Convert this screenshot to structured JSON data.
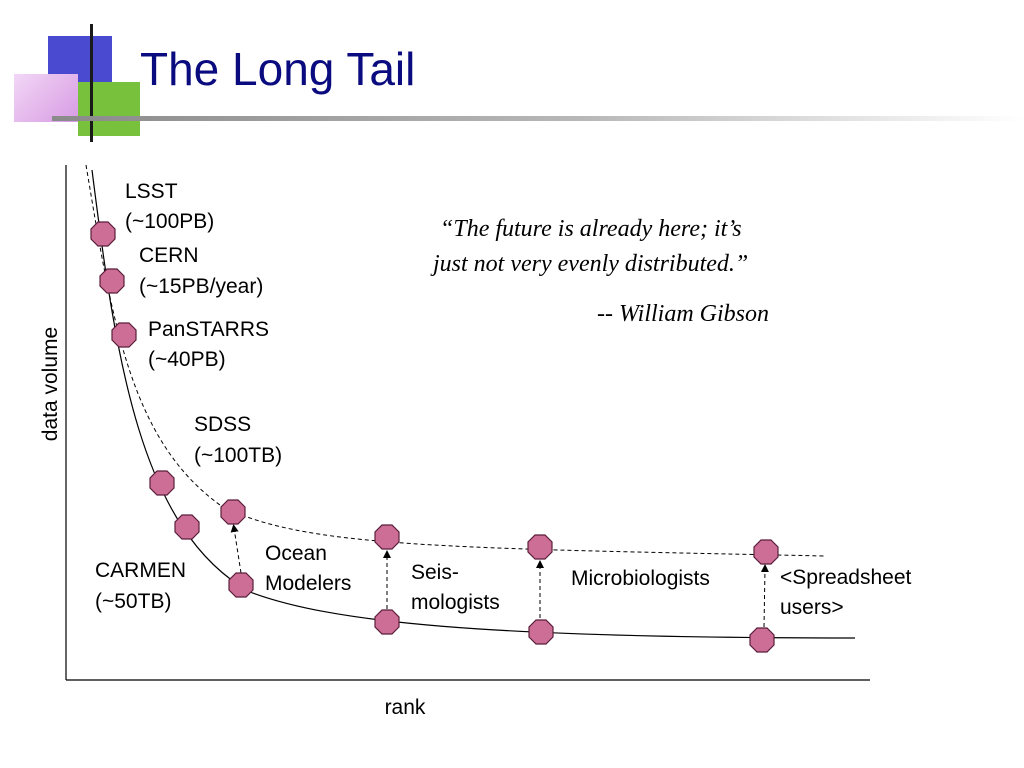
{
  "slide": {
    "title": "The Long Tail"
  },
  "quote": {
    "line1": "“The future is already here; it’s",
    "line2": "just not very evenly distributed.”",
    "attribution_dash": "-- ",
    "attribution_name": "William Gibson"
  },
  "axes": {
    "xlabel": "rank",
    "ylabel": "data volume"
  },
  "labels": {
    "lsst": [
      "LSST",
      "(~100PB)"
    ],
    "cern": [
      "CERN",
      "(~15PB/year)"
    ],
    "panstarrs": [
      "PanSTARRS",
      "(~40PB)"
    ],
    "sdss": [
      "SDSS",
      "(~100TB)"
    ],
    "carmen": [
      "CARMEN",
      "(~50TB)"
    ],
    "ocean": [
      "Ocean",
      "Modelers"
    ],
    "seis": [
      "Seis-",
      "mologists"
    ],
    "micro": [
      "Microbiologists"
    ],
    "spreadsheet": [
      "<Spreadsheet",
      "users>"
    ]
  },
  "colors": {
    "title": "#0b0b80",
    "node_fill": "#cc6e96",
    "node_stroke": "#5a1e3a",
    "deco_blue": "#4a4ad0",
    "deco_green": "#77c13c",
    "deco_pink": "#dd9ee6"
  }
}
